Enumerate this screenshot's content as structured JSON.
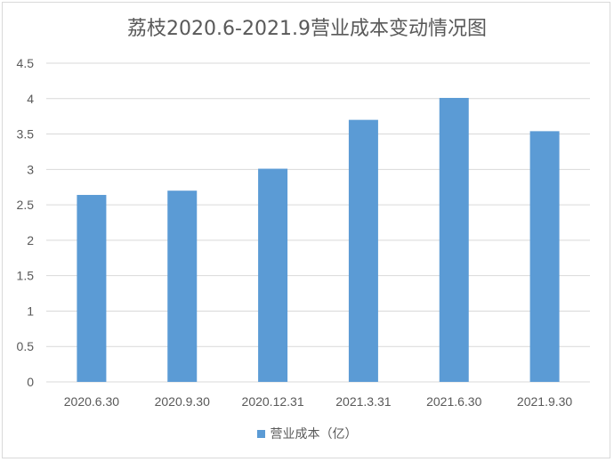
{
  "chart_data": {
    "type": "bar",
    "title": "荔枝2020.6-2021.9营业成本变动情况图",
    "categories": [
      "2020.6.30",
      "2020.9.30",
      "2020.12.31",
      "2021.3.31",
      "2021.6.30",
      "2021.9.30"
    ],
    "series": [
      {
        "name": "营业成本（亿）",
        "values": [
          2.64,
          2.7,
          3.01,
          3.7,
          4.01,
          3.54
        ],
        "color": "#5b9bd5"
      }
    ],
    "ylim": [
      0,
      4.5
    ],
    "yticks": [
      "0",
      "0.5",
      "1",
      "1.5",
      "2",
      "2.5",
      "3",
      "3.5",
      "4",
      "4.5"
    ],
    "grid": true,
    "legend_position": "bottom",
    "gridline_color": "#d9d9d9"
  }
}
